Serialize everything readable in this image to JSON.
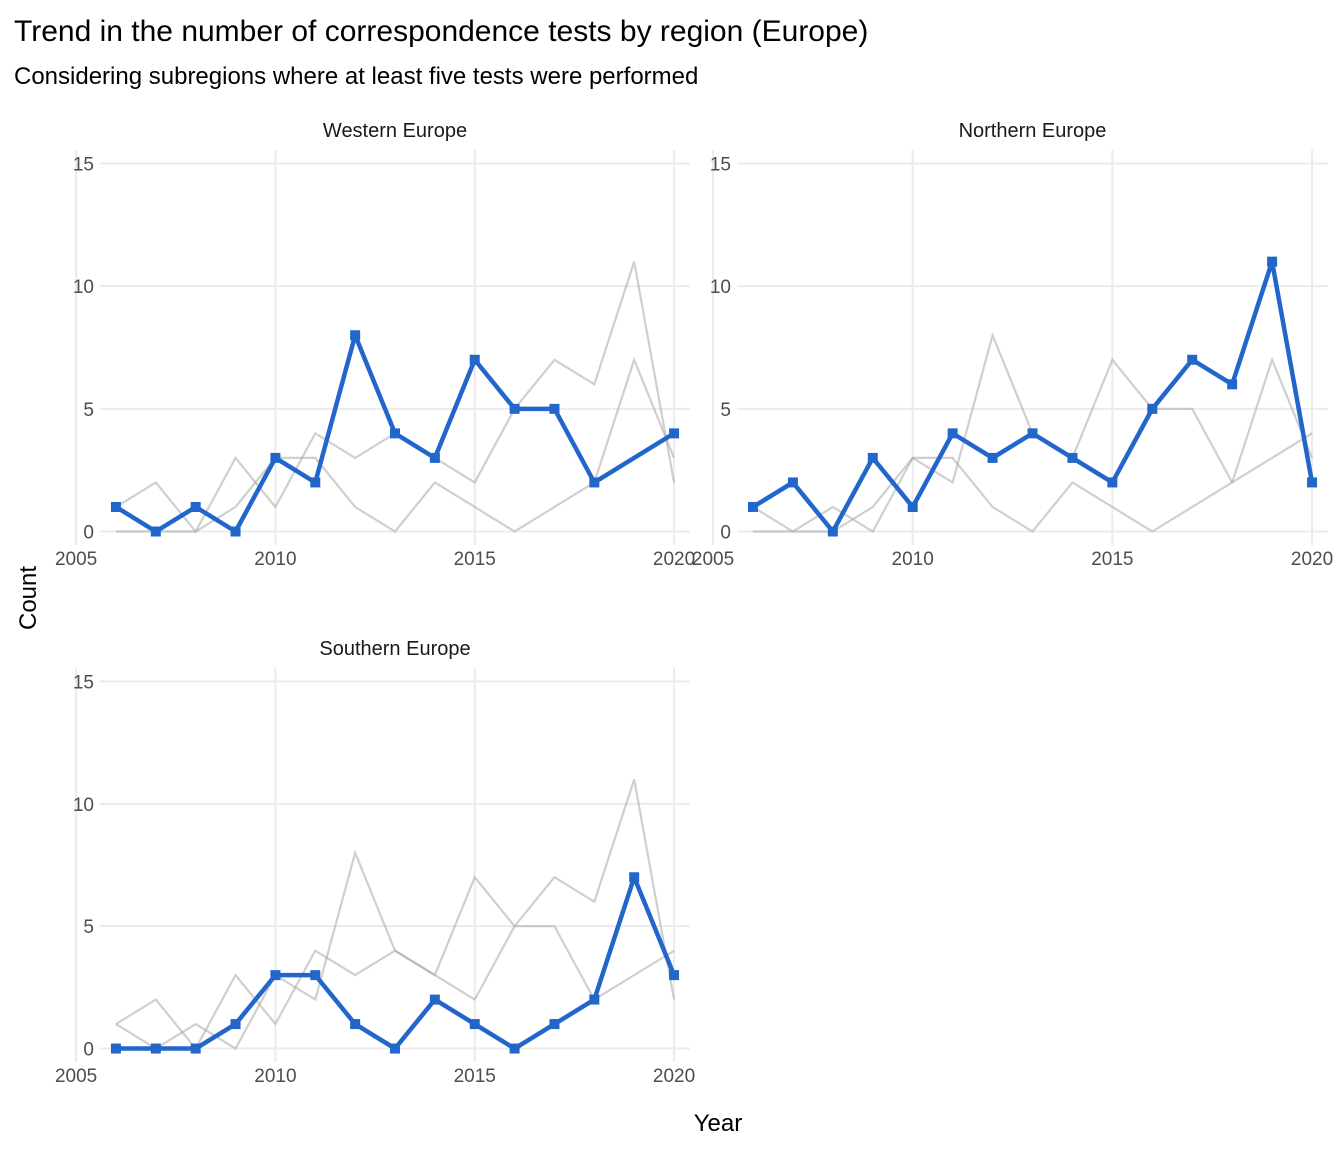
{
  "title": "Trend in the number of correspondence tests by region (Europe)",
  "subtitle": "Considering subregions where at least five tests were performed",
  "chart_data": {
    "type": "line",
    "xlabel": "Year",
    "ylabel": "Count",
    "xlim": [
      2005,
      2020
    ],
    "ylim": [
      0,
      15
    ],
    "x_ticks": [
      2005,
      2010,
      2015,
      2020
    ],
    "y_ticks": [
      0,
      5,
      10,
      15
    ],
    "highlight_color": "#2266cc",
    "background_color": "#a8a8a8",
    "panels": [
      {
        "name": "Western Europe",
        "x": [
          2006,
          2007,
          2008,
          2009,
          2010,
          2011,
          2012,
          2013,
          2014,
          2015,
          2016,
          2017,
          2018,
          2020
        ],
        "values": [
          1,
          0,
          1,
          0,
          3,
          2,
          8,
          4,
          3,
          7,
          5,
          5,
          2,
          4
        ]
      },
      {
        "name": "Northern Europe",
        "x": [
          2006,
          2007,
          2008,
          2009,
          2010,
          2011,
          2012,
          2013,
          2014,
          2015,
          2016,
          2017,
          2018,
          2019,
          2020
        ],
        "values": [
          1,
          2,
          0,
          3,
          1,
          4,
          3,
          4,
          3,
          2,
          5,
          7,
          6,
          11,
          2
        ]
      },
      {
        "name": "Southern Europe",
        "x": [
          2006,
          2007,
          2008,
          2009,
          2010,
          2011,
          2012,
          2013,
          2014,
          2015,
          2016,
          2017,
          2018,
          2019,
          2020
        ],
        "values": [
          0,
          0,
          0,
          1,
          3,
          3,
          1,
          0,
          2,
          1,
          0,
          1,
          2,
          7,
          3
        ]
      }
    ],
    "grid": true,
    "legend": "none"
  }
}
